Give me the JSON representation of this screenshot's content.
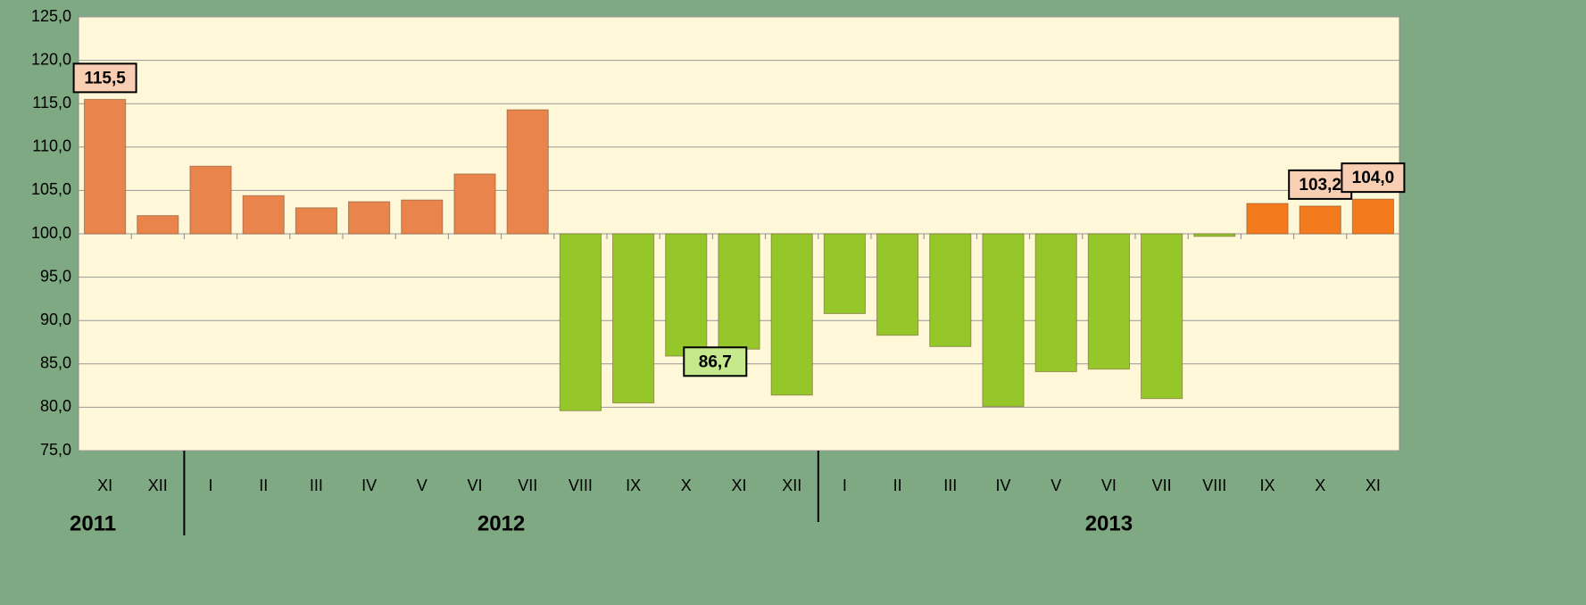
{
  "chart_data": {
    "type": "bar",
    "categories": [
      "XI",
      "XII",
      "I",
      "II",
      "III",
      "IV",
      "V",
      "VI",
      "VII",
      "VIII",
      "IX",
      "X",
      "XI",
      "XII",
      "I",
      "II",
      "III",
      "IV",
      "V",
      "VI",
      "VII",
      "VIII",
      "IX",
      "X",
      "XI"
    ],
    "values": [
      115.5,
      102.1,
      107.8,
      104.4,
      103.0,
      103.7,
      103.9,
      106.9,
      114.3,
      79.6,
      80.5,
      85.9,
      86.7,
      81.4,
      90.8,
      88.3,
      87.0,
      80.1,
      84.1,
      84.4,
      81.0,
      99.7,
      103.5,
      103.2,
      104.0
    ],
    "value_labels": [
      "115,5",
      null,
      null,
      null,
      null,
      null,
      null,
      null,
      null,
      null,
      null,
      null,
      "86,7",
      null,
      null,
      null,
      null,
      null,
      null,
      null,
      null,
      null,
      null,
      "103,2",
      "104,0"
    ],
    "colors": [
      "#e8844c",
      "#e8844c",
      "#e8844c",
      "#e8844c",
      "#e8844c",
      "#e8844c",
      "#e8844c",
      "#e8844c",
      "#e8844c",
      "#96c72a",
      "#96c72a",
      "#96c72a",
      "#96c72a",
      "#96c72a",
      "#96c72a",
      "#96c72a",
      "#96c72a",
      "#96c72a",
      "#96c72a",
      "#96c72a",
      "#96c72a",
      "#96c72a",
      "#f47a1e",
      "#f47a1e",
      "#f47a1e"
    ],
    "base": 100,
    "year_groups": [
      {
        "label": "2011",
        "count": 2
      },
      {
        "label": "2012",
        "count": 12
      },
      {
        "label": "2013",
        "count": 11
      }
    ],
    "ylim": [
      75,
      125
    ],
    "yticks": [
      {
        "value": 75,
        "label": "75,0"
      },
      {
        "value": 80,
        "label": "80,0"
      },
      {
        "value": 85,
        "label": "85,0"
      },
      {
        "value": 90,
        "label": "90,0"
      },
      {
        "value": 95,
        "label": "95,0"
      },
      {
        "value": 100,
        "label": "100,0"
      },
      {
        "value": 105,
        "label": "105,0"
      },
      {
        "value": 110,
        "label": "110,0"
      },
      {
        "value": 115,
        "label": "115,0"
      },
      {
        "value": 120,
        "label": "120,0"
      },
      {
        "value": 125,
        "label": "125,0"
      }
    ],
    "grid": true
  }
}
